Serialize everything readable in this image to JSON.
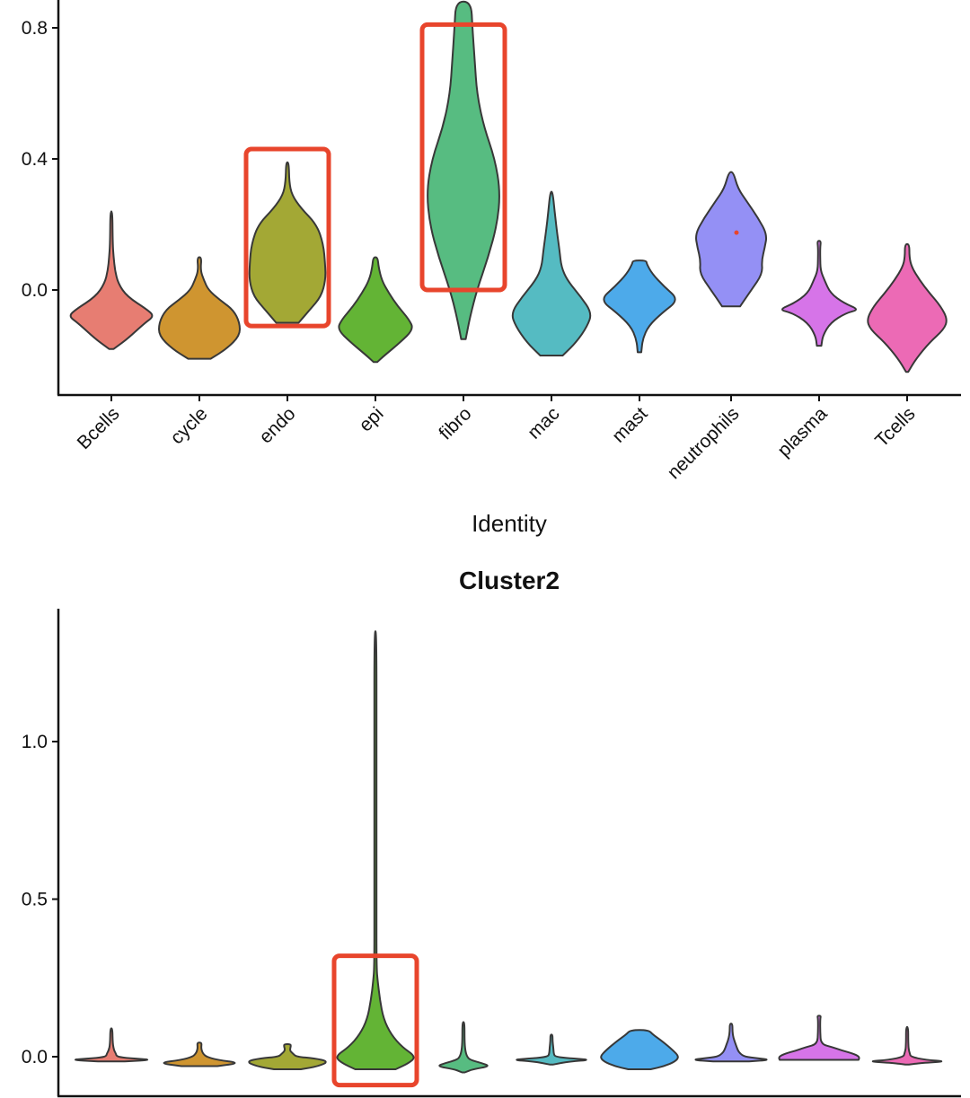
{
  "chart_data": [
    {
      "type": "violin",
      "title": "",
      "xlabel": "Identity",
      "ylabel": "",
      "ylim": [
        -0.32,
        0.88
      ],
      "yticks": [
        0.0,
        0.4,
        0.8
      ],
      "ytick_labels": [
        "0.0",
        "0.4",
        "0.8"
      ],
      "categories": [
        "Bcells",
        "cycle",
        "endo",
        "epi",
        "fibro",
        "mac",
        "mast",
        "neutrophils",
        "plasma",
        "Tcells"
      ],
      "colors": [
        "#E77D72",
        "#CF9530",
        "#A3A835",
        "#63B435",
        "#57BC81",
        "#55BBC2",
        "#4DAAEA",
        "#9490F5",
        "#D674E8",
        "#EC6AB5"
      ],
      "violins": [
        {
          "name": "Bcells",
          "min": -0.18,
          "max": 0.24,
          "profile": [
            [
              -0.18,
              0.05
            ],
            [
              -0.15,
              0.35
            ],
            [
              -0.1,
              0.75
            ],
            [
              -0.08,
              0.95
            ],
            [
              -0.06,
              0.8
            ],
            [
              -0.02,
              0.35
            ],
            [
              0.02,
              0.15
            ],
            [
              0.06,
              0.08
            ],
            [
              0.1,
              0.05
            ],
            [
              0.14,
              0.03
            ],
            [
              0.24,
              0.02
            ]
          ]
        },
        {
          "name": "cycle",
          "min": -0.21,
          "max": 0.1,
          "profile": [
            [
              -0.21,
              0.25
            ],
            [
              -0.18,
              0.6
            ],
            [
              -0.14,
              0.9
            ],
            [
              -0.1,
              0.9
            ],
            [
              -0.06,
              0.75
            ],
            [
              -0.03,
              0.45
            ],
            [
              0.0,
              0.2
            ],
            [
              0.03,
              0.1
            ],
            [
              0.06,
              0.02
            ],
            [
              0.1,
              0.05
            ]
          ]
        },
        {
          "name": "endo",
          "min": -0.1,
          "max": 0.39,
          "profile": [
            [
              -0.1,
              0.25
            ],
            [
              -0.06,
              0.5
            ],
            [
              -0.02,
              0.75
            ],
            [
              0.03,
              0.85
            ],
            [
              0.08,
              0.84
            ],
            [
              0.14,
              0.8
            ],
            [
              0.2,
              0.65
            ],
            [
              0.25,
              0.3
            ],
            [
              0.29,
              0.1
            ],
            [
              0.33,
              0.04
            ],
            [
              0.39,
              0.03
            ]
          ]
        },
        {
          "name": "epi",
          "min": -0.22,
          "max": 0.1,
          "profile": [
            [
              -0.22,
              0.04
            ],
            [
              -0.2,
              0.2
            ],
            [
              -0.16,
              0.55
            ],
            [
              -0.12,
              0.85
            ],
            [
              -0.09,
              0.75
            ],
            [
              -0.05,
              0.5
            ],
            [
              -0.01,
              0.3
            ],
            [
              0.03,
              0.14
            ],
            [
              0.07,
              0.07
            ],
            [
              0.1,
              0.05
            ]
          ]
        },
        {
          "name": "fibro",
          "min": -0.15,
          "max": 0.88,
          "profile": [
            [
              -0.15,
              0.05
            ],
            [
              -0.08,
              0.15
            ],
            [
              0.0,
              0.3
            ],
            [
              0.1,
              0.55
            ],
            [
              0.2,
              0.75
            ],
            [
              0.3,
              0.82
            ],
            [
              0.4,
              0.7
            ],
            [
              0.5,
              0.45
            ],
            [
              0.6,
              0.3
            ],
            [
              0.7,
              0.25
            ],
            [
              0.8,
              0.2
            ],
            [
              0.88,
              0.17
            ]
          ]
        },
        {
          "name": "mac",
          "min": -0.2,
          "max": 0.3,
          "profile": [
            [
              -0.2,
              0.25
            ],
            [
              -0.16,
              0.55
            ],
            [
              -0.11,
              0.8
            ],
            [
              -0.07,
              0.9
            ],
            [
              -0.02,
              0.65
            ],
            [
              0.03,
              0.35
            ],
            [
              0.07,
              0.22
            ],
            [
              0.12,
              0.18
            ],
            [
              0.18,
              0.12
            ],
            [
              0.24,
              0.07
            ],
            [
              0.3,
              0.02
            ]
          ]
        },
        {
          "name": "mast",
          "min": -0.19,
          "max": 0.09,
          "profile": [
            [
              -0.19,
              0.04
            ],
            [
              -0.15,
              0.07
            ],
            [
              -0.11,
              0.2
            ],
            [
              -0.07,
              0.5
            ],
            [
              -0.03,
              0.88
            ],
            [
              0.01,
              0.55
            ],
            [
              0.05,
              0.28
            ],
            [
              0.08,
              0.16
            ],
            [
              0.09,
              0.15
            ]
          ]
        },
        {
          "name": "neutrophils",
          "min": -0.05,
          "max": 0.36,
          "profile": [
            [
              -0.05,
              0.2
            ],
            [
              0.0,
              0.45
            ],
            [
              0.05,
              0.7
            ],
            [
              0.09,
              0.68
            ],
            [
              0.13,
              0.75
            ],
            [
              0.17,
              0.8
            ],
            [
              0.22,
              0.6
            ],
            [
              0.27,
              0.35
            ],
            [
              0.31,
              0.15
            ],
            [
              0.36,
              0.05
            ]
          ]
        },
        {
          "name": "plasma",
          "min": -0.17,
          "max": 0.15,
          "profile": [
            [
              -0.17,
              0.05
            ],
            [
              -0.14,
              0.08
            ],
            [
              -0.1,
              0.25
            ],
            [
              -0.07,
              0.6
            ],
            [
              -0.06,
              0.9
            ],
            [
              -0.04,
              0.55
            ],
            [
              -0.01,
              0.25
            ],
            [
              0.03,
              0.12
            ],
            [
              0.06,
              0.03
            ],
            [
              0.1,
              0.02
            ],
            [
              0.13,
              0.02
            ],
            [
              0.15,
              0.04
            ]
          ]
        },
        {
          "name": "Tcells",
          "min": -0.25,
          "max": 0.14,
          "profile": [
            [
              -0.25,
              0.02
            ],
            [
              -0.21,
              0.2
            ],
            [
              -0.16,
              0.5
            ],
            [
              -0.12,
              0.82
            ],
            [
              -0.09,
              0.9
            ],
            [
              -0.05,
              0.75
            ],
            [
              -0.01,
              0.5
            ],
            [
              0.03,
              0.28
            ],
            [
              0.07,
              0.1
            ],
            [
              0.1,
              0.05
            ],
            [
              0.14,
              0.05
            ]
          ]
        }
      ],
      "annotations": [
        {
          "type": "highlight-box",
          "category": "endo",
          "y_range": [
            -0.11,
            0.43
          ]
        },
        {
          "type": "highlight-box",
          "category": "fibro",
          "y_range": [
            0.0,
            0.81
          ]
        },
        {
          "type": "point",
          "category": "neutrophils",
          "y": 0.175,
          "color": "#E8452C"
        }
      ]
    },
    {
      "type": "violin",
      "title": "Cluster2",
      "xlabel": "",
      "ylabel": "",
      "ylim": [
        -0.12,
        1.43
      ],
      "yticks": [
        0.0,
        0.5,
        1.0
      ],
      "ytick_labels": [
        "0.0",
        "0.5",
        "1.0"
      ],
      "categories": [
        "Bcells",
        "cycle",
        "endo",
        "epi",
        "fibro",
        "mac",
        "mast",
        "neutrophils",
        "plasma",
        "Tcells"
      ],
      "colors": [
        "#E77D72",
        "#CF9530",
        "#A3A835",
        "#63B435",
        "#57BC81",
        "#55BBC2",
        "#4DAAEA",
        "#9490F5",
        "#D674E8",
        "#EC6AB5"
      ],
      "violins": [
        {
          "name": "Bcells",
          "min": -0.015,
          "max": 0.09,
          "profile": [
            [
              -0.015,
              0.3
            ],
            [
              -0.01,
              0.95
            ],
            [
              -0.005,
              0.4
            ],
            [
              0.0,
              0.12
            ],
            [
              0.01,
              0.1
            ],
            [
              0.02,
              0.06
            ],
            [
              0.04,
              0.03
            ],
            [
              0.09,
              0.02
            ]
          ]
        },
        {
          "name": "cycle",
          "min": -0.03,
          "max": 0.045,
          "profile": [
            [
              -0.03,
              0.4
            ],
            [
              -0.02,
              0.92
            ],
            [
              -0.01,
              0.4
            ],
            [
              0.0,
              0.15
            ],
            [
              0.01,
              0.08
            ],
            [
              0.02,
              0.05
            ],
            [
              0.03,
              0.04
            ],
            [
              0.045,
              0.05
            ]
          ]
        },
        {
          "name": "endo",
          "min": -0.04,
          "max": 0.04,
          "profile": [
            [
              -0.04,
              0.3
            ],
            [
              -0.03,
              0.7
            ],
            [
              -0.015,
              0.92
            ],
            [
              -0.005,
              0.6
            ],
            [
              0.0,
              0.2
            ],
            [
              0.01,
              0.12
            ],
            [
              0.02,
              0.05
            ],
            [
              0.035,
              0.08
            ],
            [
              0.04,
              0.06
            ]
          ]
        },
        {
          "name": "epi",
          "min": -0.04,
          "max": 1.35,
          "profile": [
            [
              -0.04,
              0.45
            ],
            [
              -0.02,
              0.75
            ],
            [
              0.0,
              0.9
            ],
            [
              0.03,
              0.6
            ],
            [
              0.07,
              0.35
            ],
            [
              0.12,
              0.18
            ],
            [
              0.18,
              0.1
            ],
            [
              0.24,
              0.05
            ],
            [
              0.28,
              0.02
            ],
            [
              0.5,
              0.015
            ],
            [
              1.0,
              0.015
            ],
            [
              1.35,
              0.02
            ]
          ]
        },
        {
          "name": "fibro",
          "min": -0.05,
          "max": 0.11,
          "profile": [
            [
              -0.05,
              0.03
            ],
            [
              -0.04,
              0.2
            ],
            [
              -0.03,
              0.6
            ],
            [
              -0.02,
              0.4
            ],
            [
              -0.01,
              0.15
            ],
            [
              0.0,
              0.08
            ],
            [
              0.02,
              0.04
            ],
            [
              0.05,
              0.02
            ],
            [
              0.11,
              0.02
            ]
          ]
        },
        {
          "name": "mac",
          "min": -0.025,
          "max": 0.07,
          "profile": [
            [
              -0.025,
              0.03
            ],
            [
              -0.015,
              0.4
            ],
            [
              -0.01,
              0.9
            ],
            [
              -0.005,
              0.4
            ],
            [
              0.0,
              0.08
            ],
            [
              0.01,
              0.05
            ],
            [
              0.03,
              0.04
            ],
            [
              0.05,
              0.02
            ],
            [
              0.07,
              0.02
            ]
          ]
        },
        {
          "name": "mast",
          "min": -0.04,
          "max": 0.085,
          "profile": [
            [
              -0.04,
              0.25
            ],
            [
              -0.03,
              0.55
            ],
            [
              -0.015,
              0.8
            ],
            [
              0.0,
              0.88
            ],
            [
              0.02,
              0.75
            ],
            [
              0.05,
              0.5
            ],
            [
              0.07,
              0.3
            ],
            [
              0.085,
              0.2
            ]
          ]
        },
        {
          "name": "neutrophils",
          "min": -0.015,
          "max": 0.105,
          "profile": [
            [
              -0.015,
              0.4
            ],
            [
              -0.01,
              0.88
            ],
            [
              -0.005,
              0.6
            ],
            [
              0.0,
              0.3
            ],
            [
              0.01,
              0.2
            ],
            [
              0.02,
              0.15
            ],
            [
              0.04,
              0.1
            ],
            [
              0.06,
              0.05
            ],
            [
              0.08,
              0.03
            ],
            [
              0.105,
              0.03
            ]
          ]
        },
        {
          "name": "plasma",
          "min": -0.01,
          "max": 0.13,
          "profile": [
            [
              -0.01,
              0.88
            ],
            [
              0.0,
              0.9
            ],
            [
              0.01,
              0.75
            ],
            [
              0.02,
              0.5
            ],
            [
              0.03,
              0.3
            ],
            [
              0.04,
              0.04
            ],
            [
              0.08,
              0.02
            ],
            [
              0.12,
              0.02
            ],
            [
              0.13,
              0.04
            ]
          ]
        },
        {
          "name": "Tcells",
          "min": -0.025,
          "max": 0.095,
          "profile": [
            [
              -0.025,
              0.04
            ],
            [
              -0.02,
              0.3
            ],
            [
              -0.015,
              0.9
            ],
            [
              -0.01,
              0.4
            ],
            [
              0.0,
              0.08
            ],
            [
              0.01,
              0.06
            ],
            [
              0.02,
              0.04
            ],
            [
              0.03,
              0.03
            ],
            [
              0.05,
              0.02
            ],
            [
              0.095,
              0.02
            ]
          ]
        }
      ],
      "annotations": [
        {
          "type": "highlight-box",
          "category": "epi",
          "y_range": [
            -0.09,
            0.32
          ]
        }
      ]
    }
  ]
}
